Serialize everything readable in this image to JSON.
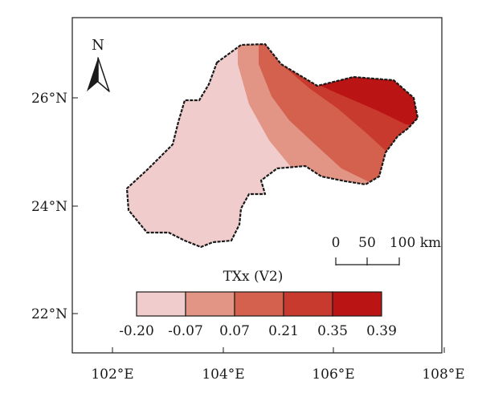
{
  "map": {
    "north_label": "N",
    "lat_ticks": [
      "26°N",
      "24°N",
      "22°N"
    ],
    "lon_ticks": [
      "102°E",
      "104°E",
      "106°E",
      "108°E"
    ],
    "scale_bar": {
      "labels": [
        "0",
        "50",
        "100 km"
      ]
    },
    "legend": {
      "title": "TXx (V2)",
      "breaks": [
        "-0.20",
        "-0.07",
        "0.07",
        "0.21",
        "0.35",
        "0.39"
      ],
      "colors": [
        "#f1cccc",
        "#e29585",
        "#d4604e",
        "#c93a2e",
        "#bb1414"
      ]
    },
    "zones": {
      "z1_color": "#f1cccc",
      "z2_color": "#e29585",
      "z3_color": "#d4604e",
      "z4_color": "#c93a2e",
      "z5_color": "#bb1414"
    },
    "boundary_color": "#1a1a1a"
  }
}
